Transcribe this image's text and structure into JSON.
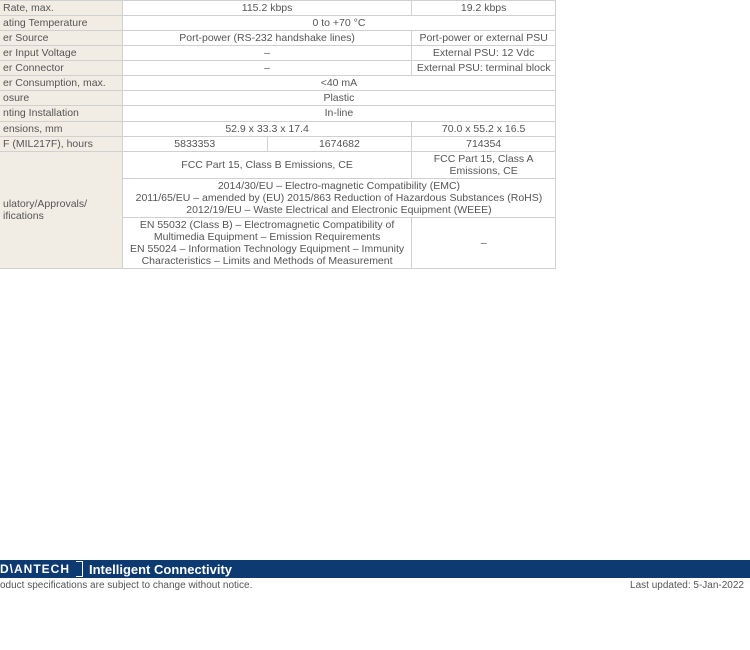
{
  "rows": {
    "rate_max": {
      "label": "Rate, max.",
      "c12": "115.2 kbps",
      "c3": "19.2 kbps"
    },
    "op_temp": {
      "label": "ating Temperature",
      "c123": "0 to +70 °C"
    },
    "pwr_source": {
      "label": "er Source",
      "c12": "Port-power (RS-232 handshake lines)",
      "c3": "Port-power or external PSU"
    },
    "pwr_voltage": {
      "label": "er Input Voltage",
      "c12": "–",
      "c3": "External PSU: 12 Vdc"
    },
    "pwr_connector": {
      "label": "er Connector",
      "c12": "–",
      "c3": "External PSU: terminal block"
    },
    "pwr_consumption": {
      "label": "er Consumption, max.",
      "c123": "<40 mA"
    },
    "enclosure": {
      "label": "osure",
      "c123": "Plastic"
    },
    "mounting": {
      "label": "nting Installation",
      "c123": "In-line"
    },
    "dimensions": {
      "label": "ensions, mm",
      "c12": "52.9 x 33.3 x 17.4",
      "c3": "70.0 x 55.2 x 16.5"
    },
    "mtbf": {
      "label": "F (MIL217F), hours",
      "c1": "5833353",
      "c2": "1674682",
      "c3": "714354"
    },
    "reg_label": "ulatory/Approvals/\nifications",
    "reg_r1_c12": "FCC Part 15, Class B Emissions, CE",
    "reg_r1_c3": "FCC Part 15, Class A Emissions, CE",
    "reg_r2": "2014/30/EU – Electro-magnetic Compatibility (EMC)\n2011/65/EU – amended by (EU) 2015/863 Reduction of Hazardous Substances (RoHS)\n2012/19/EU – Waste Electrical and Electronic Equipment (WEEE)",
    "reg_r3_c12": "EN 55032 (Class B) – Electromagnetic Compatibility of\nMultimedia Equipment – Emission Requirements\nEN 55024 – Information Technology Equipment – Immunity\nCharacteristics – Limits and Methods of Measurement",
    "reg_r3_c3": "–"
  },
  "footer": {
    "brand": "D\\ANTECH",
    "tagline": "Intelligent Connectivity",
    "disclaimer": "oduct specifications are subject to change without notice.",
    "updated": "Last updated: 5-Jan-2022"
  },
  "colors": {
    "header_bg": "#f2ede4",
    "border": "#d0d0d0",
    "footer_bar": "#0d3a70",
    "text": "#555555"
  }
}
